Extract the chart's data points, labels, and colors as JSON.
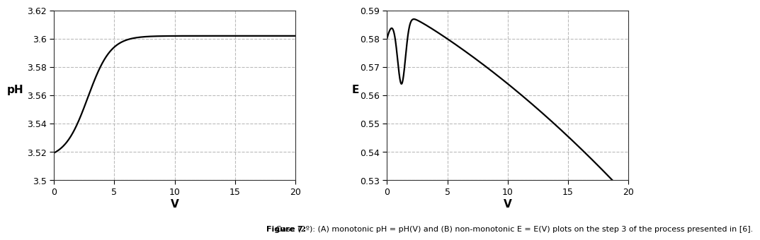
{
  "plot1": {
    "ylabel": "pH",
    "xlabel": "V",
    "xlim": [
      0,
      20
    ],
    "ylim": [
      3.5,
      3.62
    ],
    "yticks": [
      3.5,
      3.52,
      3.54,
      3.56,
      3.58,
      3.6,
      3.62
    ],
    "ytick_labels": [
      "3.5",
      "3.52",
      "3.54",
      "3.56",
      "3.58",
      "3.6",
      "3.62"
    ],
    "xticks": [
      0,
      5,
      10,
      15,
      20
    ],
    "sigmoid_a": 3.515,
    "sigmoid_b": 3.602,
    "sigmoid_k": 1.05,
    "sigmoid_x0": 2.8
  },
  "plot2": {
    "ylabel": "E",
    "xlabel": "V",
    "xlim": [
      0,
      20
    ],
    "ylim": [
      0.53,
      0.59
    ],
    "yticks": [
      0.53,
      0.54,
      0.55,
      0.56,
      0.57,
      0.58,
      0.59
    ],
    "ytick_labels": [
      "0.53",
      "0.54",
      "0.55",
      "0.56",
      "0.57",
      "0.58",
      "0.59"
    ],
    "xticks": [
      0,
      5,
      10,
      15,
      20
    ]
  },
  "caption_bold": "Figure 7:",
  "caption_normal": " Case (2º): (A) monotonic pH = pH(V) and (B) non-monotonic E = E(V) plots on the step 3 of the process presented in [6].",
  "line_color": "#000000",
  "line_width": 1.6,
  "grid_color": "#bbbbbb",
  "grid_linestyle": "--",
  "bg_color": "#ffffff",
  "fig_width": 9.11,
  "fig_height": 3.39
}
